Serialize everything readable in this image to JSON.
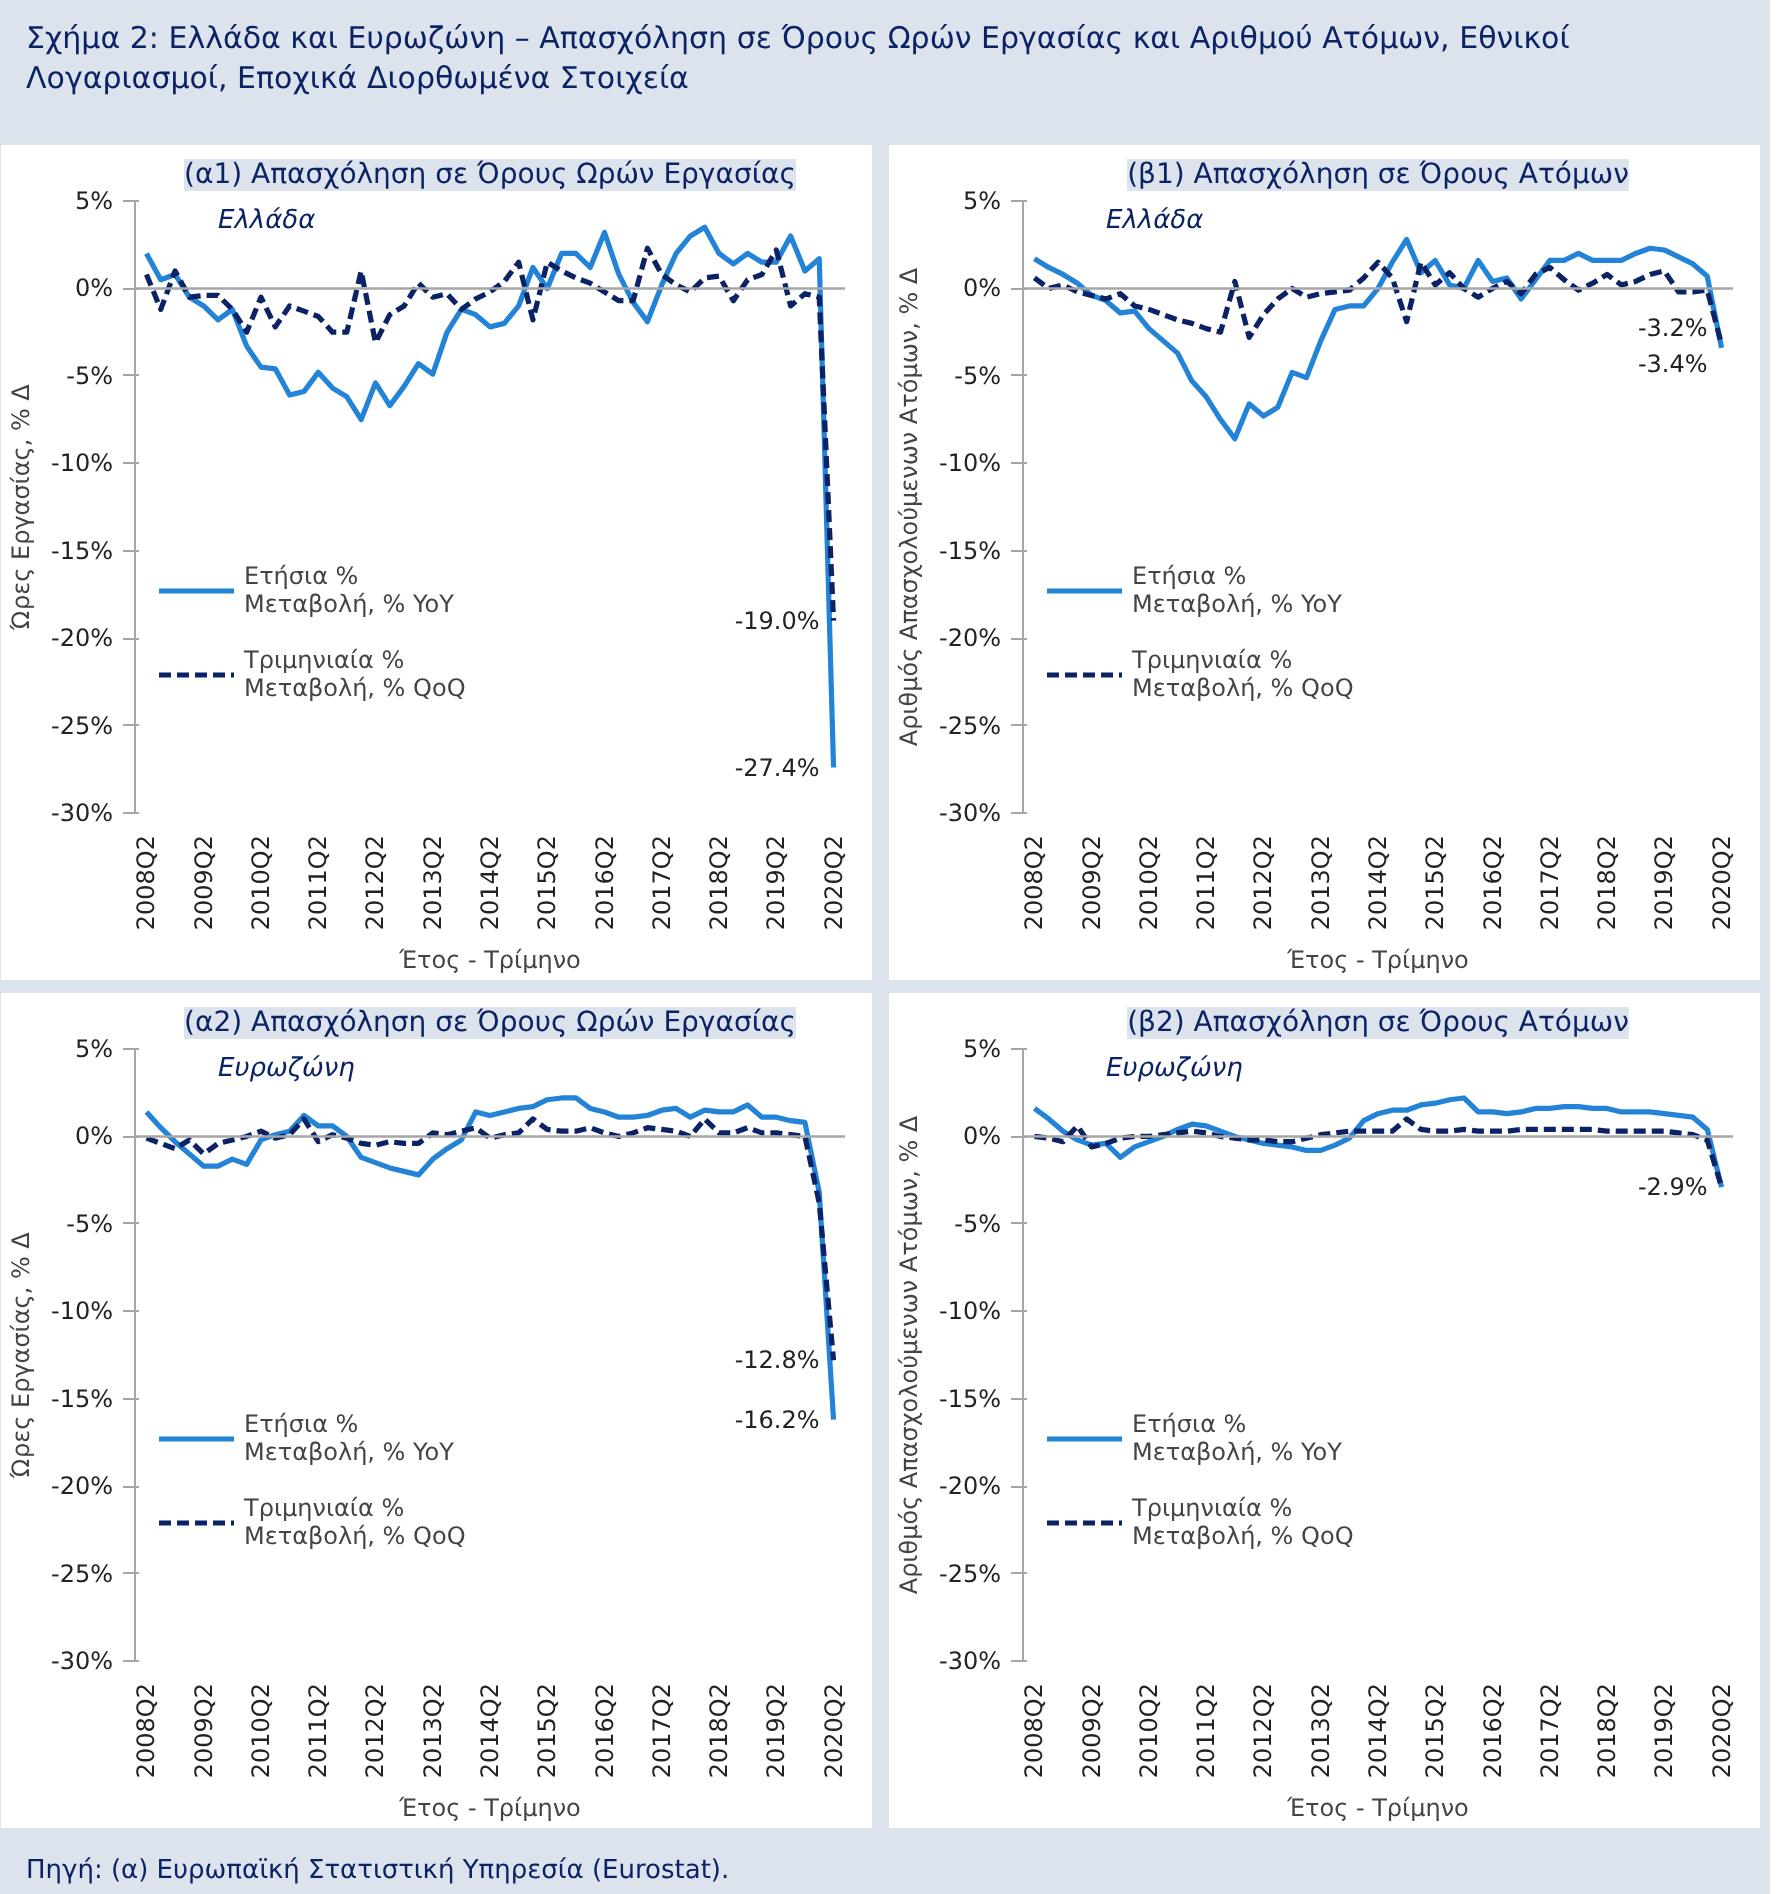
{
  "chart_data": [
    {
      "type": "line",
      "title": "Σχήμα 2: Ελλάδα και Ευρωζώνη – Απασχόληση σε Όρους Ωρών Εργασίας και Αριθμού Ατόμων, Εθνικοί Λογαριασμοί, Εποχικά Διορθωμένα Στοιχεία",
      "subtitle": "(α1) Απασχόληση σε Όρους Ωρών Εργασίας",
      "xlabel": "Έτος - Τρίμηνο",
      "ylabel": "Ώρες Εργασίας, % Δ",
      "annotations": [
        "Ελλάδα"
      ],
      "categories": [
        "2008Q2",
        null,
        null,
        null,
        "2009Q2",
        null,
        null,
        null,
        "2010Q2",
        null,
        null,
        null,
        "2011Q2",
        null,
        null,
        null,
        "2012Q2",
        null,
        null,
        null,
        "2013Q2",
        null,
        null,
        null,
        "2014Q2",
        null,
        null,
        null,
        "2015Q2",
        null,
        null,
        null,
        "2016Q2",
        null,
        null,
        null,
        "2017Q2",
        null,
        null,
        null,
        "2018Q2",
        null,
        null,
        null,
        "2019Q2",
        null,
        null,
        null,
        "2020Q2"
      ],
      "series": [
        {
          "name": "Ετήσια % Μεταβολή, % YoY",
          "color": "#2383d6",
          "line_style": "solid",
          "values": [
            2.0,
            0.5,
            0.8,
            -0.5,
            -1.0,
            -1.8,
            -1.2,
            -3.3,
            -4.5,
            -4.6,
            -6.1,
            -5.9,
            -4.8,
            -5.7,
            -6.2,
            -7.5,
            -5.4,
            -6.7,
            -5.6,
            -4.3,
            -4.9,
            -2.5,
            -1.2,
            -1.5,
            -2.2,
            -2.0,
            -1.0,
            1.2,
            0.0,
            2.0,
            2.0,
            1.2,
            3.2,
            0.8,
            -0.8,
            -1.9,
            0.2,
            2.0,
            3.0,
            3.5,
            2.0,
            1.4,
            2.0,
            1.5,
            1.5,
            3.0,
            1.0,
            1.7,
            -27.4
          ],
          "value_labels": [
            null,
            null,
            null,
            null,
            null,
            null,
            null,
            null,
            null,
            null,
            null,
            null,
            null,
            null,
            null,
            null,
            null,
            null,
            null,
            null,
            null,
            null,
            null,
            null,
            null,
            null,
            null,
            null,
            null,
            null,
            null,
            null,
            null,
            null,
            null,
            null,
            null,
            null,
            null,
            null,
            null,
            null,
            null,
            null,
            null,
            null,
            null,
            null,
            "-27.4%"
          ]
        },
        {
          "name": "Τριμηνιαία % Μεταβολή, % QoQ",
          "color": "#0b2265",
          "line_style": "dashed",
          "values": [
            0.8,
            -1.2,
            1.0,
            -0.5,
            -0.4,
            -0.4,
            -1.2,
            -2.5,
            -0.5,
            -2.2,
            -1.0,
            -1.3,
            -1.6,
            -2.5,
            -2.5,
            1.0,
            -3.1,
            -1.5,
            -1.0,
            0.3,
            -0.5,
            -0.3,
            -1.2,
            -0.6,
            -0.2,
            0.4,
            1.5,
            -1.8,
            1.5,
            1.0,
            0.6,
            0.3,
            -0.2,
            -0.7,
            -0.7,
            2.3,
            0.8,
            0.2,
            -0.2,
            0.6,
            0.7,
            -0.7,
            0.5,
            0.8,
            2.2,
            -1.0,
            -0.3,
            -0.5,
            -19.0
          ],
          "value_labels": [
            null,
            null,
            null,
            null,
            null,
            null,
            null,
            null,
            null,
            null,
            null,
            null,
            null,
            null,
            null,
            null,
            null,
            null,
            null,
            null,
            null,
            null,
            null,
            null,
            null,
            null,
            null,
            null,
            null,
            null,
            null,
            null,
            null,
            null,
            null,
            null,
            null,
            null,
            null,
            null,
            null,
            null,
            null,
            null,
            null,
            null,
            null,
            null,
            "-19.0%"
          ]
        }
      ],
      "ylim": [
        -30,
        5
      ],
      "yticks": [
        {
          "value": -30,
          "label": "-30%"
        },
        {
          "value": -25,
          "label": "-25%"
        },
        {
          "value": -20,
          "label": "-20%"
        },
        {
          "value": -15,
          "label": "-15%"
        },
        {
          "value": -10,
          "label": "-10%"
        },
        {
          "value": -5,
          "label": "-5%"
        },
        {
          "value": 0,
          "label": "0%"
        },
        {
          "value": 5,
          "label": "5%"
        }
      ],
      "ref_lines": [
        {
          "axis": "y",
          "value": 0,
          "color": "#a6a6a6"
        }
      ],
      "grid": false,
      "legend": "left",
      "marker": "none"
    },
    {
      "type": "line",
      "subtitle": "(β1) Απασχόληση σε Όρους Ατόμων",
      "xlabel": "Έτος - Τρίμηνο",
      "ylabel": "Αριθμός Απασχολούμενων Ατόμων, % Δ",
      "annotations": [
        "Ελλάδα"
      ],
      "categories": [
        "2008Q2",
        null,
        null,
        null,
        "2009Q2",
        null,
        null,
        null,
        "2010Q2",
        null,
        null,
        null,
        "2011Q2",
        null,
        null,
        null,
        "2012Q2",
        null,
        null,
        null,
        "2013Q2",
        null,
        null,
        null,
        "2014Q2",
        null,
        null,
        null,
        "2015Q2",
        null,
        null,
        null,
        "2016Q2",
        null,
        null,
        null,
        "2017Q2",
        null,
        null,
        null,
        "2018Q2",
        null,
        null,
        null,
        "2019Q2",
        null,
        null,
        null,
        "2020Q2"
      ],
      "series": [
        {
          "name": "Ετήσια % Μεταβολή, % YoY",
          "color": "#2383d6",
          "line_style": "solid",
          "values": [
            1.7,
            1.2,
            0.8,
            0.3,
            -0.4,
            -0.7,
            -1.4,
            -1.3,
            -2.3,
            -3.0,
            -3.7,
            -5.3,
            -6.2,
            -7.5,
            -8.6,
            -6.6,
            -7.3,
            -6.8,
            -4.8,
            -5.1,
            -3.0,
            -1.2,
            -1.0,
            -1.0,
            0.0,
            1.5,
            2.8,
            0.9,
            1.6,
            0.2,
            0.0,
            1.6,
            0.4,
            0.6,
            -0.6,
            0.5,
            1.6,
            1.6,
            2.0,
            1.6,
            1.6,
            1.6,
            2.0,
            2.3,
            2.2,
            1.8,
            1.4,
            0.7,
            -3.4
          ],
          "value_labels": [
            null,
            null,
            null,
            null,
            null,
            null,
            null,
            null,
            null,
            null,
            null,
            null,
            null,
            null,
            null,
            null,
            null,
            null,
            null,
            null,
            null,
            null,
            null,
            null,
            null,
            null,
            null,
            null,
            null,
            null,
            null,
            null,
            null,
            null,
            null,
            null,
            null,
            null,
            null,
            null,
            null,
            null,
            null,
            null,
            null,
            null,
            null,
            null,
            "-3.4%"
          ]
        },
        {
          "name": "Τριμηνιαία % Μεταβολή, % QoQ",
          "color": "#0b2265",
          "line_style": "dashed",
          "values": [
            0.6,
            0.0,
            0.2,
            -0.2,
            -0.4,
            -0.6,
            -0.3,
            -1.0,
            -1.2,
            -1.5,
            -1.8,
            -2.0,
            -2.3,
            -2.5,
            0.4,
            -2.8,
            -1.5,
            -0.6,
            0.0,
            -0.5,
            -0.3,
            -0.2,
            -0.1,
            0.6,
            1.5,
            0.6,
            -1.9,
            1.5,
            0.2,
            0.9,
            0.0,
            -0.5,
            0.0,
            0.4,
            -0.3,
            0.8,
            1.2,
            0.5,
            -0.1,
            0.3,
            0.8,
            0.2,
            0.4,
            0.8,
            1.0,
            -0.2,
            -0.2,
            -0.1,
            -3.2
          ],
          "value_labels": [
            null,
            null,
            null,
            null,
            null,
            null,
            null,
            null,
            null,
            null,
            null,
            null,
            null,
            null,
            null,
            null,
            null,
            null,
            null,
            null,
            null,
            null,
            null,
            null,
            null,
            null,
            null,
            null,
            null,
            null,
            null,
            null,
            null,
            null,
            null,
            null,
            null,
            null,
            null,
            null,
            null,
            null,
            null,
            null,
            null,
            null,
            null,
            null,
            "-3.2%"
          ]
        }
      ],
      "ylim": [
        -30,
        5
      ],
      "yticks": [
        {
          "value": -30,
          "label": "-30%"
        },
        {
          "value": -25,
          "label": "-25%"
        },
        {
          "value": -20,
          "label": "-20%"
        },
        {
          "value": -15,
          "label": "-15%"
        },
        {
          "value": -10,
          "label": "-10%"
        },
        {
          "value": -5,
          "label": "-5%"
        },
        {
          "value": 0,
          "label": "0%"
        },
        {
          "value": 5,
          "label": "5%"
        }
      ],
      "ref_lines": [
        {
          "axis": "y",
          "value": 0,
          "color": "#a6a6a6"
        }
      ],
      "grid": false,
      "legend": "left",
      "marker": "none"
    },
    {
      "type": "line",
      "subtitle": "(α2) Απασχόληση σε Όρους Ωρών Εργασίας",
      "xlabel": "Έτος - Τρίμηνο",
      "ylabel": "Ώρες Εργασίας, % Δ",
      "annotations": [
        "Ευρωζώνη"
      ],
      "categories": [
        "2008Q2",
        null,
        null,
        null,
        "2009Q2",
        null,
        null,
        null,
        "2010Q2",
        null,
        null,
        null,
        "2011Q2",
        null,
        null,
        null,
        "2012Q2",
        null,
        null,
        null,
        "2013Q2",
        null,
        null,
        null,
        "2014Q2",
        null,
        null,
        null,
        "2015Q2",
        null,
        null,
        null,
        "2016Q2",
        null,
        null,
        null,
        "2017Q2",
        null,
        null,
        null,
        "2018Q2",
        null,
        null,
        null,
        "2019Q2",
        null,
        null,
        null,
        "2020Q2"
      ],
      "series": [
        {
          "name": "Ετήσια % Μεταβολή, % YoY",
          "color": "#2383d6",
          "line_style": "solid",
          "values": [
            1.4,
            0.5,
            -0.3,
            -1.0,
            -1.7,
            -1.7,
            -1.3,
            -1.6,
            -0.2,
            0.1,
            0.3,
            1.2,
            0.6,
            0.6,
            0.0,
            -1.2,
            -1.5,
            -1.8,
            -2.0,
            -2.2,
            -1.3,
            -0.7,
            -0.2,
            1.4,
            1.2,
            1.4,
            1.6,
            1.7,
            2.1,
            2.2,
            2.2,
            1.6,
            1.4,
            1.1,
            1.1,
            1.2,
            1.5,
            1.6,
            1.1,
            1.5,
            1.4,
            1.4,
            1.8,
            1.1,
            1.1,
            0.9,
            0.8,
            -3.2,
            -16.2
          ],
          "value_labels": [
            null,
            null,
            null,
            null,
            null,
            null,
            null,
            null,
            null,
            null,
            null,
            null,
            null,
            null,
            null,
            null,
            null,
            null,
            null,
            null,
            null,
            null,
            null,
            null,
            null,
            null,
            null,
            null,
            null,
            null,
            null,
            null,
            null,
            null,
            null,
            null,
            null,
            null,
            null,
            null,
            null,
            null,
            null,
            null,
            null,
            null,
            null,
            null,
            "-16.2%"
          ]
        },
        {
          "name": "Τριμηνιαία % Μεταβολή, % QoQ",
          "color": "#0b2265",
          "line_style": "dashed",
          "values": [
            -0.1,
            -0.4,
            -0.7,
            -0.2,
            -1.0,
            -0.4,
            -0.2,
            0.0,
            0.3,
            -0.1,
            0.1,
            1.0,
            -0.3,
            0.1,
            -0.1,
            -0.4,
            -0.5,
            -0.3,
            -0.4,
            -0.4,
            0.2,
            0.1,
            0.3,
            0.5,
            -0.1,
            0.1,
            0.2,
            1.0,
            0.4,
            0.3,
            0.3,
            0.5,
            0.2,
            0.0,
            0.2,
            0.5,
            0.4,
            0.3,
            0.0,
            1.0,
            0.2,
            0.2,
            0.5,
            0.2,
            0.2,
            0.1,
            0.0,
            -3.8,
            -12.8
          ],
          "value_labels": [
            null,
            null,
            null,
            null,
            null,
            null,
            null,
            null,
            null,
            null,
            null,
            null,
            null,
            null,
            null,
            null,
            null,
            null,
            null,
            null,
            null,
            null,
            null,
            null,
            null,
            null,
            null,
            null,
            null,
            null,
            null,
            null,
            null,
            null,
            null,
            null,
            null,
            null,
            null,
            null,
            null,
            null,
            null,
            null,
            null,
            null,
            null,
            null,
            "-12.8%"
          ]
        }
      ],
      "ylim": [
        -30,
        5
      ],
      "yticks": [
        {
          "value": -30,
          "label": "-30%"
        },
        {
          "value": -25,
          "label": "-25%"
        },
        {
          "value": -20,
          "label": "-20%"
        },
        {
          "value": -15,
          "label": "-15%"
        },
        {
          "value": -10,
          "label": "-10%"
        },
        {
          "value": -5,
          "label": "-5%"
        },
        {
          "value": 0,
          "label": "0%"
        },
        {
          "value": 5,
          "label": "5%"
        }
      ],
      "ref_lines": [
        {
          "axis": "y",
          "value": 0,
          "color": "#a6a6a6"
        }
      ],
      "grid": false,
      "legend": "left",
      "marker": "none"
    },
    {
      "type": "line",
      "subtitle": "(β2) Απασχόληση σε Όρους Ατόμων",
      "xlabel": "Έτος - Τρίμηνο",
      "ylabel": "Αριθμός Απασχολούμενων Ατόμων, % Δ",
      "annotations": [
        "Ευρωζώνη",
        "Πηγή: (α) Ευρωπαϊκή Στατιστική Υπηρεσία (Eurostat)."
      ],
      "categories": [
        "2008Q2",
        null,
        null,
        null,
        "2009Q2",
        null,
        null,
        null,
        "2010Q2",
        null,
        null,
        null,
        "2011Q2",
        null,
        null,
        null,
        "2012Q2",
        null,
        null,
        null,
        "2013Q2",
        null,
        null,
        null,
        "2014Q2",
        null,
        null,
        null,
        "2015Q2",
        null,
        null,
        null,
        "2016Q2",
        null,
        null,
        null,
        "2017Q2",
        null,
        null,
        null,
        "2018Q2",
        null,
        null,
        null,
        "2019Q2",
        null,
        null,
        null,
        "2020Q2"
      ],
      "series": [
        {
          "name": "Ετήσια % Μεταβολή, % YoY",
          "color": "#2383d6",
          "line_style": "solid",
          "values": [
            1.6,
            1.0,
            0.3,
            -0.2,
            -0.5,
            -0.4,
            -1.2,
            -0.6,
            -0.3,
            0.0,
            0.4,
            0.7,
            0.6,
            0.3,
            0.0,
            -0.2,
            -0.4,
            -0.5,
            -0.6,
            -0.8,
            -0.8,
            -0.5,
            -0.1,
            0.9,
            1.3,
            1.5,
            1.5,
            1.8,
            1.9,
            2.1,
            2.2,
            1.4,
            1.4,
            1.3,
            1.4,
            1.6,
            1.6,
            1.7,
            1.7,
            1.6,
            1.6,
            1.4,
            1.4,
            1.4,
            1.3,
            1.2,
            1.1,
            0.4,
            -2.9
          ],
          "value_labels": [
            null,
            null,
            null,
            null,
            null,
            null,
            null,
            null,
            null,
            null,
            null,
            null,
            null,
            null,
            null,
            null,
            null,
            null,
            null,
            null,
            null,
            null,
            null,
            null,
            null,
            null,
            null,
            null,
            null,
            null,
            null,
            null,
            null,
            null,
            null,
            null,
            null,
            null,
            null,
            null,
            null,
            null,
            null,
            null,
            null,
            null,
            null,
            null,
            "-2.9%"
          ]
        },
        {
          "name": "Τριμηνιαία % Μεταβολή, % QoQ",
          "color": "#0b2265",
          "line_style": "dashed",
          "values": [
            0.0,
            -0.1,
            -0.3,
            0.6,
            -0.6,
            -0.4,
            -0.1,
            0.0,
            0.0,
            0.1,
            0.2,
            0.3,
            0.2,
            0.0,
            -0.1,
            -0.2,
            -0.2,
            -0.3,
            -0.3,
            -0.1,
            0.1,
            0.2,
            0.3,
            0.3,
            0.3,
            0.3,
            1.0,
            0.4,
            0.3,
            0.3,
            0.4,
            0.3,
            0.3,
            0.3,
            0.4,
            0.4,
            0.4,
            0.4,
            0.4,
            0.4,
            0.3,
            0.3,
            0.3,
            0.3,
            0.3,
            0.2,
            0.1,
            -0.2,
            -2.9
          ]
        }
      ],
      "ylim": [
        -30,
        5
      ],
      "yticks": [
        {
          "value": -30,
          "label": "-30%"
        },
        {
          "value": -25,
          "label": "-25%"
        },
        {
          "value": -20,
          "label": "-20%"
        },
        {
          "value": -15,
          "label": "-15%"
        },
        {
          "value": -10,
          "label": "-10%"
        },
        {
          "value": -5,
          "label": "-5%"
        },
        {
          "value": 0,
          "label": "0%"
        },
        {
          "value": 5,
          "label": "5%"
        }
      ],
      "ref_lines": [
        {
          "axis": "y",
          "value": 0,
          "color": "#a6a6a6"
        }
      ],
      "grid": false,
      "legend": "left",
      "marker": "none"
    }
  ]
}
